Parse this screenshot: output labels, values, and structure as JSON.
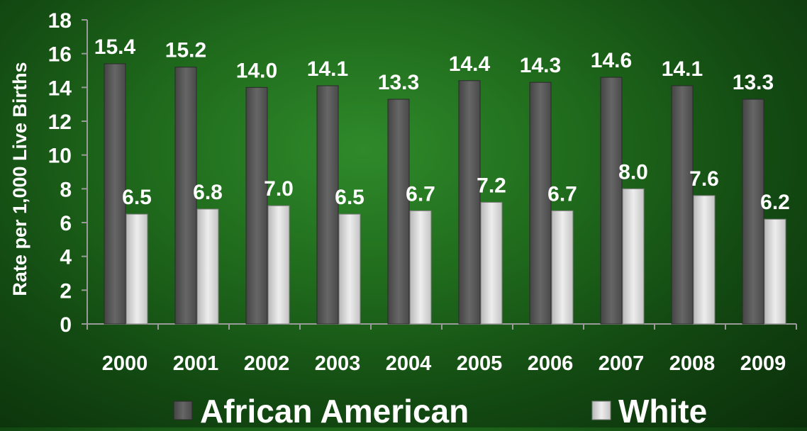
{
  "chart_data": {
    "type": "bar",
    "title": "",
    "xlabel": "",
    "ylabel": "Rate per 1,000 Live Births",
    "ylim": [
      0,
      18
    ],
    "yticks": [
      0,
      2,
      4,
      6,
      8,
      10,
      12,
      14,
      16,
      18
    ],
    "grid": false,
    "legend_position": "bottom",
    "categories": [
      "2000",
      "2001",
      "2002",
      "2003",
      "2004",
      "2005",
      "2006",
      "2007",
      "2008",
      "2009"
    ],
    "series": [
      {
        "name": "African American",
        "color": "#5a5a5a",
        "values": [
          15.4,
          15.2,
          14.0,
          14.1,
          13.3,
          14.4,
          14.3,
          14.6,
          14.1,
          13.3
        ],
        "labels": [
          "15.4",
          "15.2",
          "14.0",
          "14.1",
          "13.3",
          "14.4",
          "14.3",
          "14.6",
          "14.1",
          "13.3"
        ]
      },
      {
        "name": "White",
        "color": "#d4d4d4",
        "values": [
          6.5,
          6.8,
          7.0,
          6.5,
          6.7,
          7.2,
          6.7,
          8.0,
          7.6,
          6.2
        ],
        "labels": [
          "6.5",
          "6.8",
          "7.0",
          "6.5",
          "6.7",
          "7.2",
          "6.7",
          "8.0",
          "7.6",
          "6.2"
        ]
      }
    ]
  }
}
